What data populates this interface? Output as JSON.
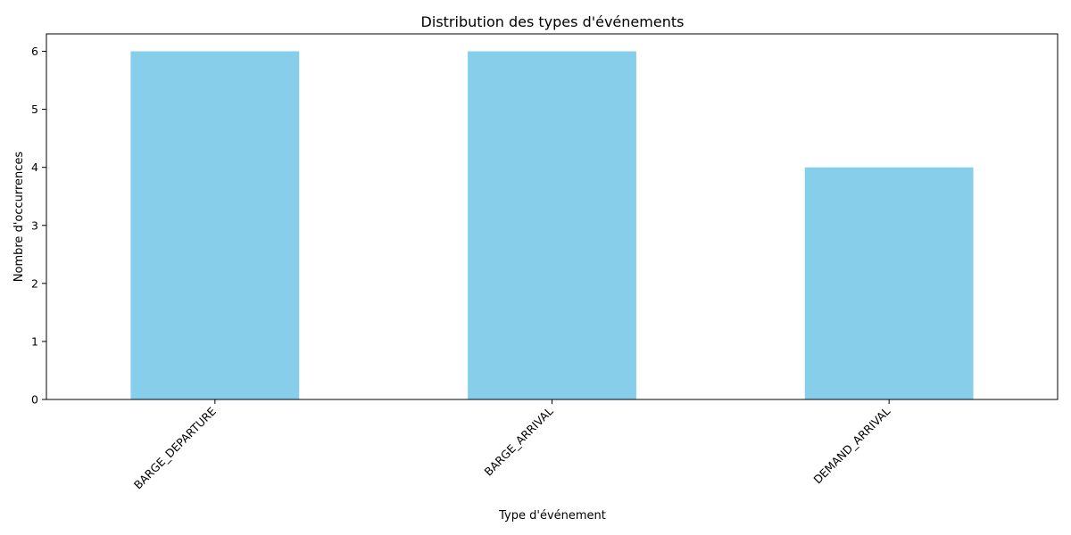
{
  "chart_data": {
    "type": "bar",
    "title": "Distribution des types d'événements",
    "xlabel": "Type d'événement",
    "ylabel": "Nombre d'occurrences",
    "categories": [
      "BARGE_DEPARTURE",
      "BARGE_ARRIVAL",
      "DEMAND_ARRIVAL"
    ],
    "values": [
      6,
      6,
      4
    ],
    "ylim": [
      0,
      6.3
    ],
    "yticks": [
      0,
      1,
      2,
      3,
      4,
      5,
      6
    ],
    "bar_color": "#87ceeb",
    "grid": false,
    "legend": "none"
  }
}
